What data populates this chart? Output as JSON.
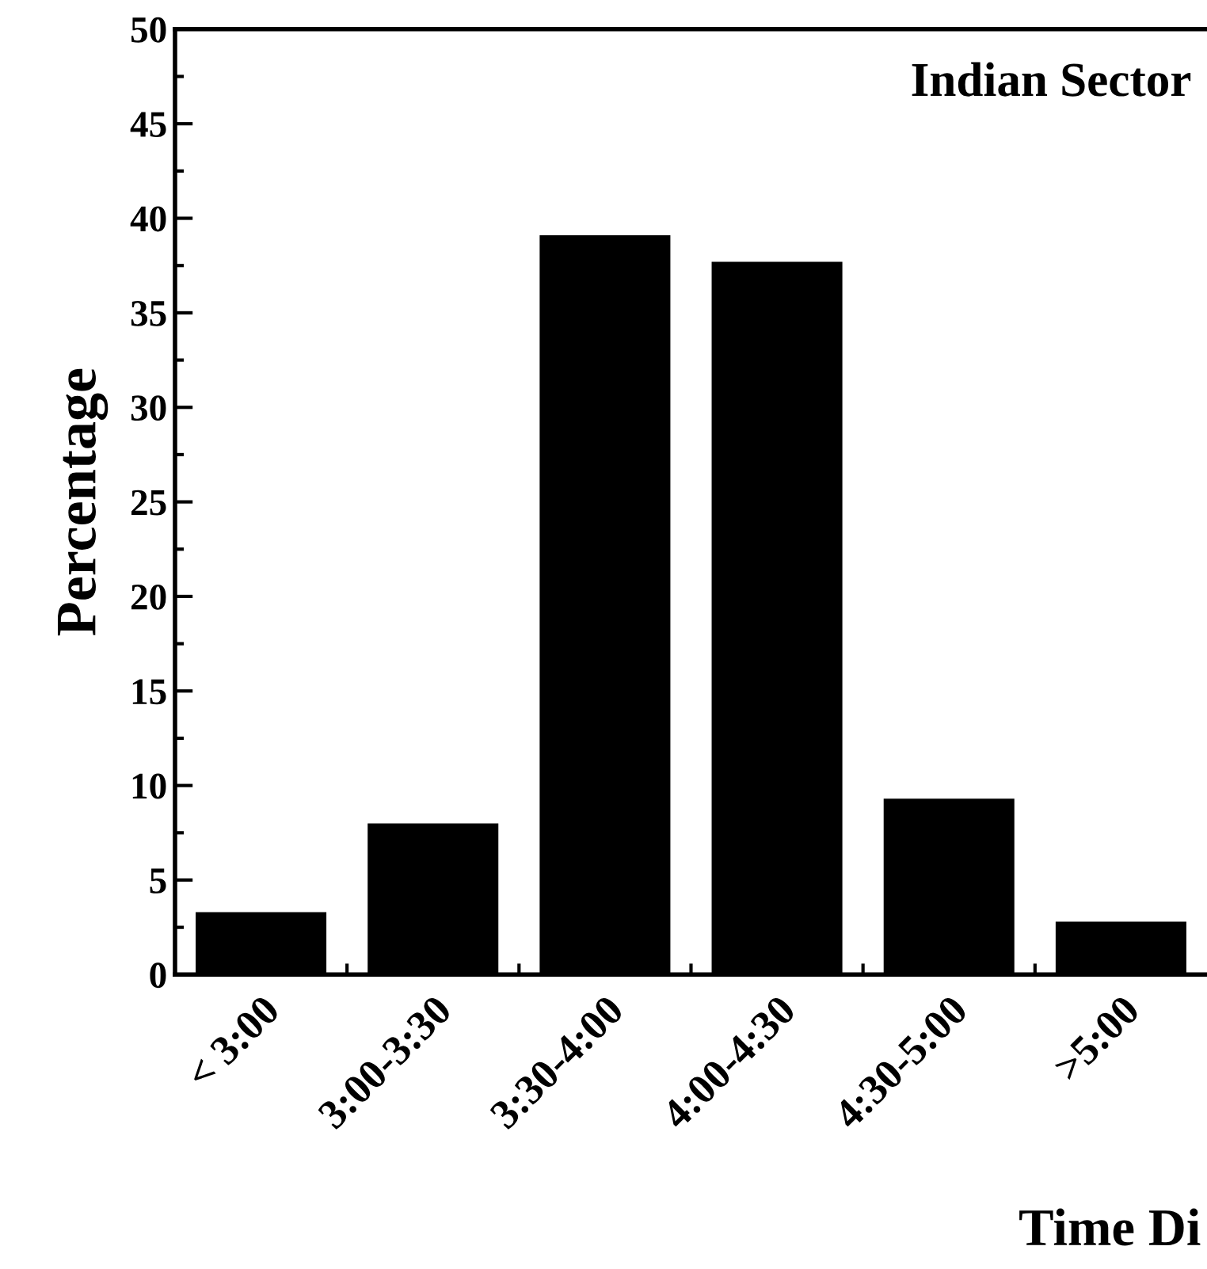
{
  "chart_data": {
    "type": "bar",
    "categories": [
      "< 3:00",
      "3:00-3:30",
      "3:30-4:00",
      "4:00-4:30",
      "4:30-5:00",
      ">5:00"
    ],
    "values": [
      3.3,
      8.0,
      39.1,
      37.7,
      9.3,
      2.8
    ],
    "color": "#000000",
    "ylim": [
      0,
      50
    ],
    "yticks": [
      0,
      5,
      10,
      15,
      20,
      25,
      30,
      35,
      40,
      45,
      50
    ],
    "ylabel": "Percentage",
    "xlabel": "Time Di",
    "annotations": [
      "Indian Sector"
    ],
    "grid": false,
    "legend": false
  }
}
